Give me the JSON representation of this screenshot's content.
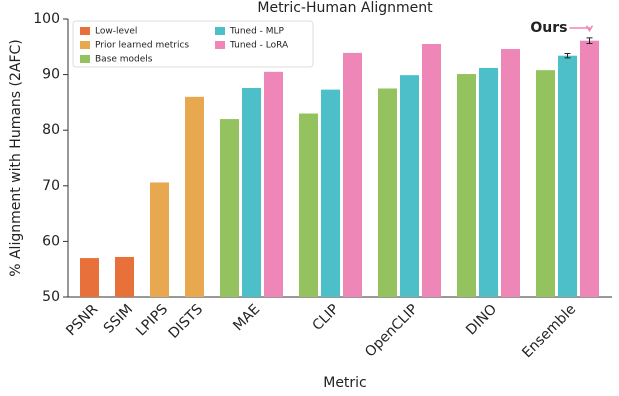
{
  "chart_data": {
    "type": "bar",
    "title": "Metric-Human Alignment",
    "x_label": "Metric",
    "y_label": "% Alignment with Humans (2AFC)",
    "categories": [
      "PSNR",
      "SSIM",
      "LPIPS",
      "DISTS",
      "MAE",
      "CLIP",
      "OpenCLIP",
      "DINO",
      "Ensemble"
    ],
    "series": [
      {
        "name": "Low-level",
        "color": "#e8703a",
        "values": [
          57.0,
          57.2,
          null,
          null,
          null,
          null,
          null,
          null,
          null
        ]
      },
      {
        "name": "Prior learned metrics",
        "color": "#e8a84f",
        "values": [
          null,
          null,
          70.6,
          86.0,
          null,
          null,
          null,
          null,
          null
        ]
      },
      {
        "name": "Base models",
        "color": "#93c25e",
        "values": [
          null,
          null,
          null,
          null,
          82.0,
          83.0,
          87.5,
          90.1,
          90.8
        ]
      },
      {
        "name": "Tuned - MLP",
        "color": "#4dbfc9",
        "values": [
          null,
          null,
          null,
          null,
          87.6,
          87.3,
          89.9,
          91.2,
          93.4
        ],
        "errors": [
          null,
          null,
          null,
          null,
          null,
          null,
          null,
          null,
          0.4
        ]
      },
      {
        "name": "Tuned - LoRA",
        "color": "#ee86b7",
        "values": [
          null,
          null,
          null,
          null,
          90.5,
          93.9,
          95.5,
          94.6,
          96.1
        ],
        "errors": [
          null,
          null,
          null,
          null,
          null,
          null,
          null,
          null,
          0.5
        ]
      }
    ],
    "annotation": "Ours",
    "ylim": [
      50,
      100
    ],
    "yticks": [
      50,
      60,
      70,
      80,
      90,
      100
    ]
  }
}
